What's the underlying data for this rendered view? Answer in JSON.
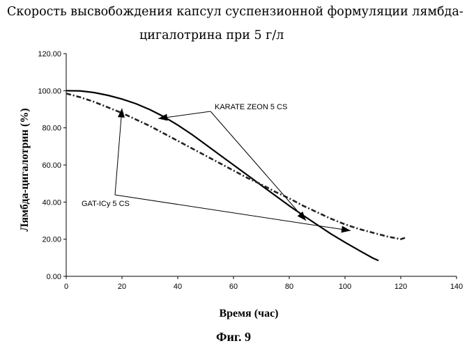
{
  "chart_data": {
    "type": "line",
    "title_line1": "Скорость высвобождения капсул суспензионной формуляции лямбда-",
    "title_line2": "цигалотрина при 5 г/л",
    "xlabel": "Время (час)",
    "ylabel": "Лямбда-цигалотрин (%)",
    "xlim": [
      0,
      140
    ],
    "ylim": [
      0,
      120
    ],
    "x_ticks": [
      "0",
      "20",
      "40",
      "60",
      "80",
      "100",
      "120",
      "140"
    ],
    "y_ticks": [
      "0.00",
      "20.00",
      "40.00",
      "60.00",
      "80.00",
      "100.00",
      "120.00"
    ],
    "grid": false,
    "series": [
      {
        "name": "KARATE ZEON 5 CS",
        "style": "solid",
        "color": "#000000",
        "x": [
          0,
          5,
          10,
          15,
          20,
          25,
          30,
          35,
          40,
          45,
          50,
          55,
          60,
          65,
          70,
          75,
          80,
          85,
          90,
          95,
          100,
          105,
          110,
          112
        ],
        "y": [
          100,
          99.9,
          99,
          97.5,
          95.5,
          93,
          89.8,
          86,
          81.5,
          76.5,
          71,
          65.5,
          60,
          54.5,
          49,
          43.5,
          38,
          32.8,
          27.8,
          22.8,
          18.3,
          14,
          9.8,
          8.5
        ]
      },
      {
        "name": "GAT-ICy 5 CS",
        "style": "dashdot",
        "color": "#222222",
        "x": [
          0,
          5,
          10,
          15,
          20,
          25,
          30,
          35,
          40,
          45,
          50,
          55,
          60,
          65,
          70,
          75,
          80,
          85,
          90,
          95,
          100,
          105,
          110,
          115,
          120,
          122
        ],
        "y": [
          98.5,
          96.5,
          94,
          91,
          88,
          84.5,
          81,
          77,
          73,
          69,
          65,
          61,
          57,
          53,
          49.5,
          45.5,
          42,
          38,
          34.5,
          31,
          28,
          25.5,
          23.5,
          21.5,
          20,
          21
        ]
      }
    ],
    "annotations": [
      {
        "text": "KARATE ZEON 5 CS",
        "target": "KARATE ZEON 5 CS"
      },
      {
        "text": "GAT-ICy 5 CS",
        "target": "GAT-ICy 5 CS"
      }
    ]
  },
  "caption": "Фиг. 9"
}
